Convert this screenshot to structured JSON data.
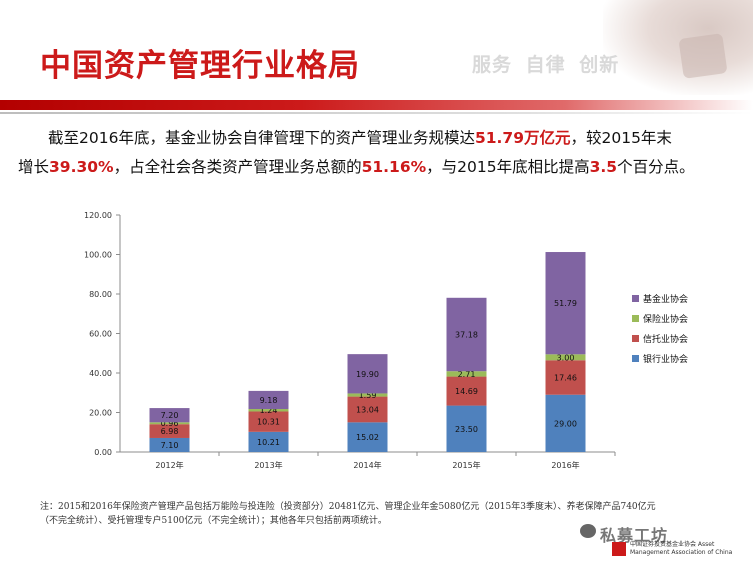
{
  "slide": {
    "title": "中国资产管理行业格局",
    "tagline": "服务 自律 创新",
    "summary": {
      "p1": "截至2016年底，基金业协会自律管理下的资产管理业务规模达",
      "h1": "51.79万亿元",
      "p2": "，较2015年末",
      "p3": "增长",
      "h2": "39.30%",
      "p4": "，占全社会各类资产管理业务总额的",
      "h3": "51.16%",
      "p5": "，与2015年底相比提高",
      "h4": "3.5",
      "p6": "个百分点。"
    },
    "note": "注：2015和2016年保险资产管理产品包括万能险与投连险（投资部分）20481亿元、管理企业年金5080亿元（2015年3季度末）、养老保障产品740亿元（不完全统计）、受托管理专户5100亿元（不完全统计）；其他各年只包括前两项统计。",
    "watermark": "私募工坊",
    "logo_text": "中国证券投资基金业协会 Asset Management Association of China"
  },
  "colors": {
    "title": "#cc1a1a",
    "banking": "#4f81bd",
    "trust": "#c0504d",
    "insurance": "#9bbb59",
    "fund": "#8064a2"
  },
  "chart_data": {
    "type": "bar",
    "stacked": true,
    "categories": [
      "2012年",
      "2013年",
      "2014年",
      "2015年",
      "2016年"
    ],
    "series": [
      {
        "name": "银行业协会",
        "color": "#4f81bd",
        "values": [
          7.1,
          10.21,
          15.02,
          23.5,
          29.0
        ],
        "labels": [
          "7.10",
          "10.21",
          "15.02",
          "23.50",
          "29.00"
        ]
      },
      {
        "name": "信托业协会",
        "color": "#c0504d",
        "values": [
          6.98,
          10.31,
          13.04,
          14.69,
          17.46
        ],
        "labels": [
          "6.98",
          "10.31",
          "13.04",
          "14.69",
          "17.46"
        ]
      },
      {
        "name": "保险业协会",
        "color": "#9bbb59",
        "values": [
          0.96,
          1.24,
          1.59,
          2.71,
          3.0
        ],
        "labels": [
          "0.96",
          "1.24",
          "1.59",
          "2.71",
          "3.00"
        ]
      },
      {
        "name": "基金业协会",
        "color": "#8064a2",
        "values": [
          7.2,
          9.18,
          19.9,
          37.18,
          51.79
        ],
        "labels": [
          "7.20",
          "9.18",
          "19.90",
          "37.18",
          "51.79"
        ]
      }
    ],
    "legend_order": [
      "基金业协会",
      "保险业协会",
      "信托业协会",
      "银行业协会"
    ],
    "yticks": [
      "0.00",
      "20.00",
      "40.00",
      "60.00",
      "80.00",
      "100.00",
      "120.00"
    ],
    "ylim": [
      0,
      120
    ],
    "title": "",
    "xlabel": "",
    "ylabel": "",
    "legend_position": "right"
  }
}
